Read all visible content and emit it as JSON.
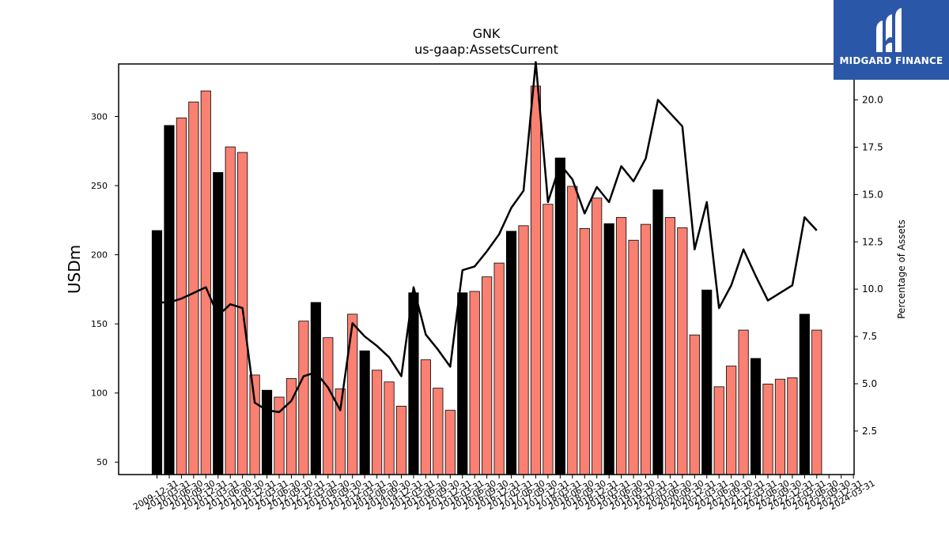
{
  "brand": {
    "name": "MIDGARD FINANCE",
    "color": "#2b57a8"
  },
  "chart_data": {
    "type": "bar",
    "title": "GNK",
    "subtitle": "us-gaap:AssetsCurrent",
    "ylabel": "USDm",
    "y2label": "Percentage of Assets",
    "ylim": [
      41,
      338
    ],
    "y2lim": [
      0.2,
      21.9
    ],
    "yticks": [
      50,
      100,
      150,
      200,
      250,
      300
    ],
    "y2ticks": [
      "2.5",
      "5.0",
      "7.5",
      "10.0",
      "12.5",
      "15.0",
      "17.5",
      "20.0"
    ],
    "colors": {
      "annual": "#000000",
      "quarterly": "#fa8072",
      "line": "#000000"
    },
    "categories": [
      "2009-12-31",
      "2010-03-31",
      "2010-06-30",
      "2010-09-30",
      "2010-12-31",
      "2011-03-31",
      "2011-06-30",
      "2011-09-30",
      "2011-12-31",
      "2012-03-31",
      "2012-06-30",
      "2012-09-30",
      "2012-12-31",
      "2013-03-31",
      "2013-06-30",
      "2013-09-30",
      "2013-12-31",
      "2014-03-31",
      "2014-06-30",
      "2014-09-30",
      "2014-12-31",
      "2015-03-31",
      "2015-06-30",
      "2015-09-30",
      "2015-12-31",
      "2016-03-31",
      "2016-06-30",
      "2016-09-30",
      "2016-12-31",
      "2017-03-31",
      "2017-06-30",
      "2017-09-30",
      "2017-12-31",
      "2018-03-31",
      "2018-06-30",
      "2018-09-30",
      "2018-12-31",
      "2019-03-31",
      "2019-06-30",
      "2019-09-30",
      "2019-12-31",
      "2020-03-31",
      "2020-06-30",
      "2020-09-30",
      "2020-12-31",
      "2021-03-31",
      "2021-06-30",
      "2021-09-30",
      "2021-12-31",
      "2022-03-31",
      "2022-06-30",
      "2022-09-30",
      "2022-12-31",
      "2023-03-31",
      "2023-06-30",
      "2023-09-30",
      "2023-12-31",
      "2024-03-31"
    ],
    "tick_labels": [
      "2009-12-31",
      "2010-03-31",
      "2010-06-30",
      "2010-09-30",
      "2010-12-31",
      "2011-03-31",
      "2011-06-30",
      "2011-09-30",
      "2011-12-31",
      "2012-03-31",
      "2012-06-30",
      "2012-09-30",
      "2012-12-31",
      "2013-03-31",
      "2013-06-30",
      "2013-09-30",
      "2013-12-31",
      "2014-03-31",
      "2014-06-30",
      "2014-09-30",
      "2014-12-31",
      "2015-03-31",
      "2015-06-30",
      "2015-09-30",
      "2015-12-31",
      "2016-03-31",
      "2016-06-30",
      "2016-09-30",
      "2016-12-31",
      "2017-03-31",
      "2017-06-30",
      "2017-09-30",
      "2017-12-31",
      "2018-03-31",
      "2018-06-30",
      "2018-09-30",
      "2018-12-31",
      "2019-03-31",
      "2019-06-30",
      "2019-09-30",
      "2019-12-31",
      "2020-03-31",
      "2020-06-30",
      "2020-09-30",
      "2020-12-31",
      "2021-03-31",
      "2021-06-30",
      "2021-09-30",
      "2021-12-31",
      "2022-03-31",
      "2022-06-30",
      "2022-09-30",
      "2022-12-31",
      "2023-03-31",
      "2023-06-30",
      "2023-09-30",
      "2023-12-31",
      "2024-03-31"
    ],
    "series": [
      {
        "kind": "bar",
        "values": [
          217.5,
          293.5,
          299,
          310.5,
          318.5,
          259.5,
          278,
          274,
          113,
          102,
          97,
          110.5,
          152,
          165.5,
          140,
          103,
          157,
          130.5,
          116.5,
          108,
          90.5,
          172.5,
          124,
          103.5,
          87.5,
          172.5,
          173.5,
          184,
          194,
          217,
          221,
          322,
          236.5,
          270,
          249.5,
          219,
          241,
          222.5,
          227,
          210.5,
          222,
          247,
          227,
          219.5,
          142,
          174.5,
          104.5,
          119.5,
          145.5,
          125,
          106.5,
          110,
          111,
          157,
          145.5,
          null,
          null,
          null
        ],
        "annual": [
          true,
          true,
          false,
          false,
          false,
          true,
          false,
          false,
          false,
          true,
          false,
          false,
          false,
          true,
          false,
          false,
          false,
          true,
          false,
          false,
          false,
          true,
          false,
          false,
          false,
          true,
          false,
          false,
          false,
          true,
          false,
          false,
          false,
          true,
          false,
          false,
          false,
          true,
          false,
          false,
          false,
          true,
          false,
          false,
          false,
          true,
          false,
          false,
          false,
          true,
          false,
          false,
          false,
          true,
          false,
          false,
          false,
          false
        ]
      },
      {
        "kind": "line",
        "axis": "right",
        "values": [
          9.3,
          9.3,
          9.5,
          9.8,
          10.1,
          8.6,
          9.2,
          9.0,
          4.0,
          3.6,
          3.5,
          4.1,
          5.4,
          5.6,
          4.8,
          3.6,
          8.2,
          7.5,
          7.0,
          6.4,
          5.4,
          10.1,
          7.6,
          6.8,
          5.9,
          11.0,
          11.2,
          12.0,
          12.9,
          14.3,
          15.2,
          22.0,
          14.6,
          16.6,
          15.8,
          14.0,
          15.4,
          14.6,
          16.5,
          15.7,
          16.9,
          20.0,
          19.3,
          18.6,
          12.1,
          14.6,
          9.0,
          10.2,
          12.1,
          10.7,
          9.4,
          9.8,
          10.2,
          13.8,
          13.1,
          null,
          null,
          null
        ]
      }
    ]
  }
}
